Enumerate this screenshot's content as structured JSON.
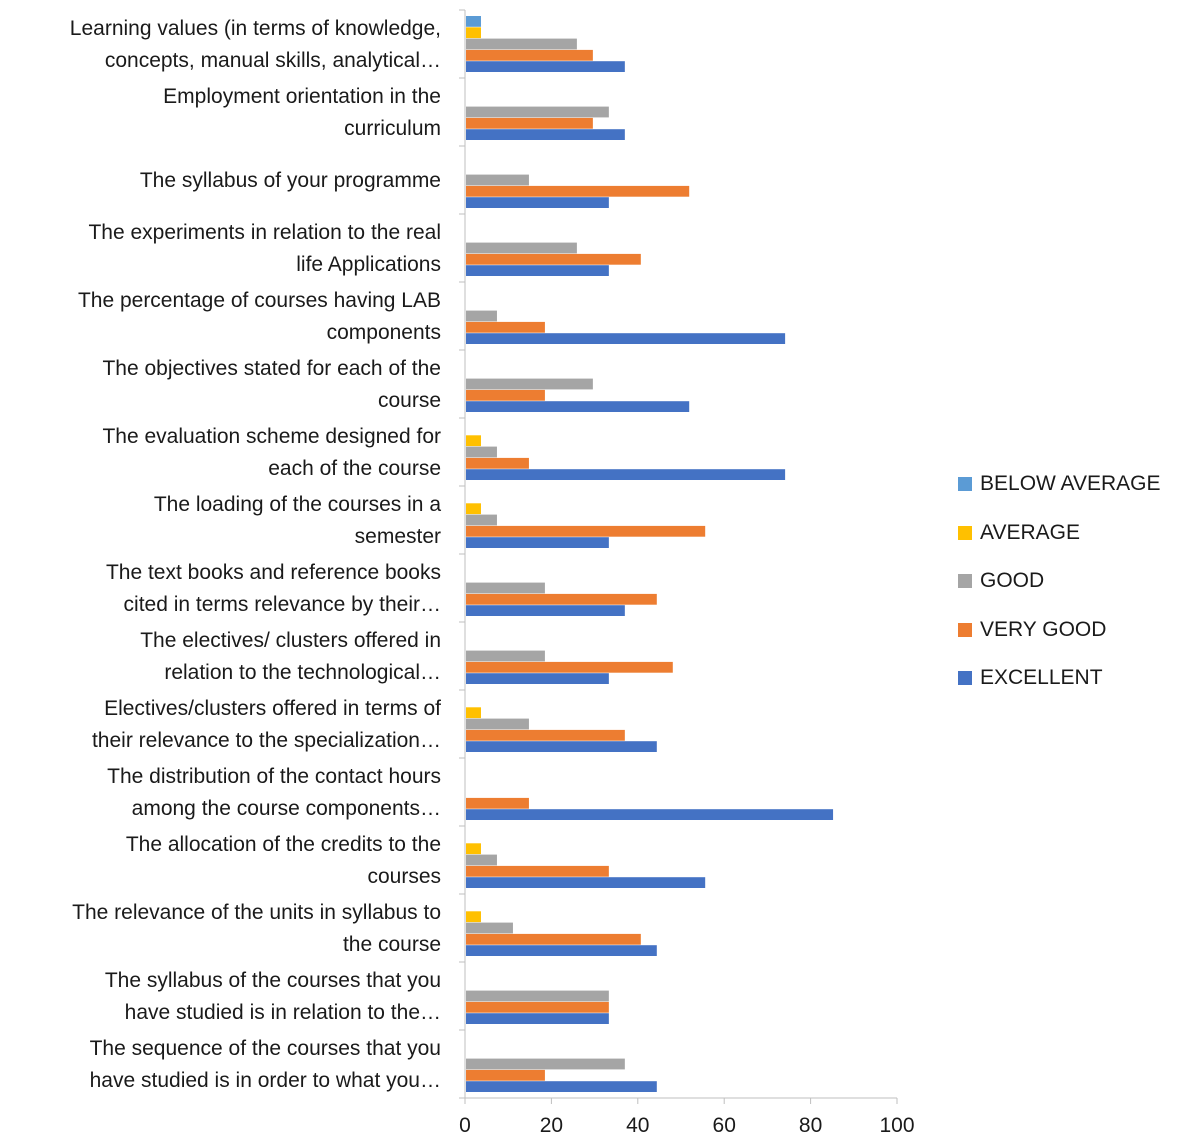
{
  "chart_data": {
    "type": "bar",
    "orientation": "horizontal",
    "categories": [
      [
        "Learning values (in terms of knowledge,",
        "concepts, manual skills, analytical…"
      ],
      [
        "Employment orientation in the",
        "curriculum"
      ],
      [
        "The syllabus of your programme"
      ],
      [
        "The experiments in relation to the real",
        "life Applications"
      ],
      [
        "The percentage of courses having LAB",
        "components"
      ],
      [
        "The objectives stated for each of the",
        "course"
      ],
      [
        "The evaluation scheme designed for",
        "each of the course"
      ],
      [
        "The loading of the courses in a",
        "semester"
      ],
      [
        "The text books and reference books",
        "cited in terms relevance by their…"
      ],
      [
        "The electives/ clusters offered in",
        "relation to the technological…"
      ],
      [
        "Electives/clusters offered in terms of",
        "their relevance to the specialization…"
      ],
      [
        "The distribution of the contact hours",
        "among the course components…"
      ],
      [
        "The allocation of the credits to the",
        "courses"
      ],
      [
        "The relevance of the units in syllabus to",
        "the course"
      ],
      [
        "The syllabus of the courses that you",
        "have studied is in relation to the…"
      ],
      [
        "The sequence of the courses that you",
        "have studied is in order to what you…"
      ]
    ],
    "series": [
      {
        "name": "BELOW AVERAGE",
        "color": "#5B9BD5",
        "values": [
          3.7,
          0,
          0,
          0,
          0,
          0,
          0,
          0,
          0,
          0,
          0,
          0,
          0,
          0,
          0,
          0
        ]
      },
      {
        "name": "AVERAGE",
        "color": "#FFC000",
        "values": [
          3.7,
          0,
          0,
          0,
          0,
          0,
          3.7,
          3.7,
          0,
          0,
          3.7,
          0,
          3.7,
          3.7,
          0,
          0
        ]
      },
      {
        "name": "GOOD",
        "color": "#A5A5A5",
        "values": [
          25.9,
          33.3,
          14.8,
          25.9,
          7.4,
          29.6,
          7.4,
          7.4,
          18.5,
          18.5,
          14.8,
          0,
          7.4,
          11.1,
          33.3,
          37
        ]
      },
      {
        "name": "VERY GOOD",
        "color": "#ED7D31",
        "values": [
          29.6,
          29.6,
          51.9,
          40.7,
          18.5,
          18.5,
          14.8,
          55.6,
          44.4,
          48.1,
          37,
          14.8,
          33.3,
          40.7,
          33.3,
          18.5
        ]
      },
      {
        "name": "EXCELLENT",
        "color": "#4472C4",
        "values": [
          37,
          37,
          33.3,
          33.3,
          74.1,
          51.9,
          74.1,
          33.3,
          37,
          33.3,
          44.4,
          85.2,
          55.6,
          44.4,
          33.3,
          44.4
        ]
      }
    ],
    "xlim": [
      0,
      100
    ],
    "xticks": [
      "0",
      "20",
      "40",
      "60",
      "80",
      "100"
    ],
    "title": "",
    "xlabel": "",
    "ylabel": "",
    "grid": false,
    "legend_position": "right"
  }
}
